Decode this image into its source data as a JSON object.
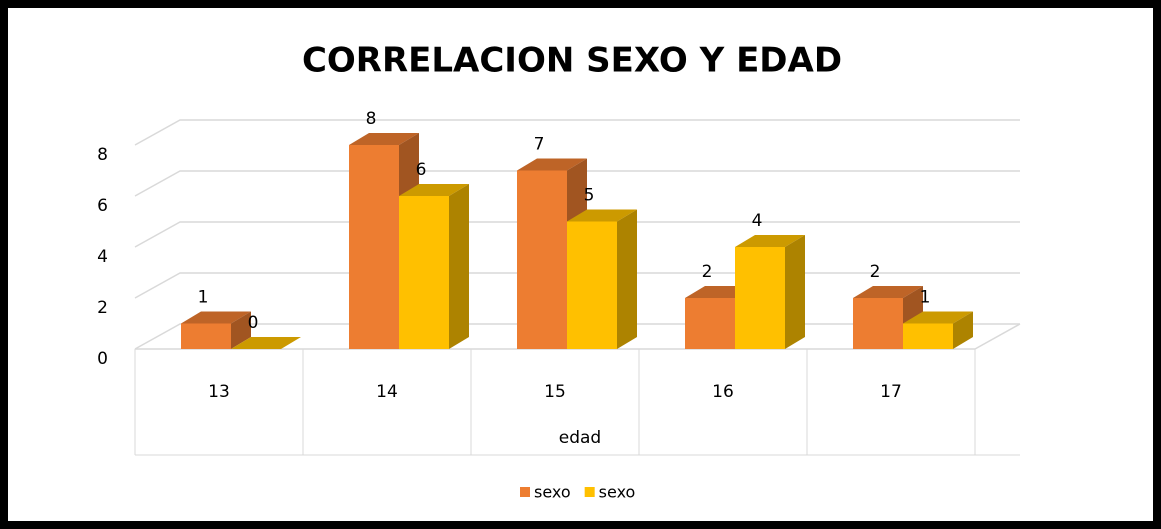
{
  "chart_data": {
    "type": "bar3d",
    "title": "CORRELACION SEXO Y EDAD",
    "x_label": "edad",
    "categories": [
      "13",
      "14",
      "15",
      "16",
      "17"
    ],
    "series": [
      {
        "name": "sexo",
        "color": "#ed7d31",
        "values": [
          1,
          8,
          7,
          2,
          2
        ]
      },
      {
        "name": "sexo",
        "color": "#ffc000",
        "values": [
          0,
          6,
          5,
          4,
          1
        ]
      }
    ],
    "ylim": [
      0,
      8
    ],
    "yticks": [
      0,
      2,
      4,
      6,
      8
    ],
    "grid": true,
    "legend": "bottom"
  }
}
